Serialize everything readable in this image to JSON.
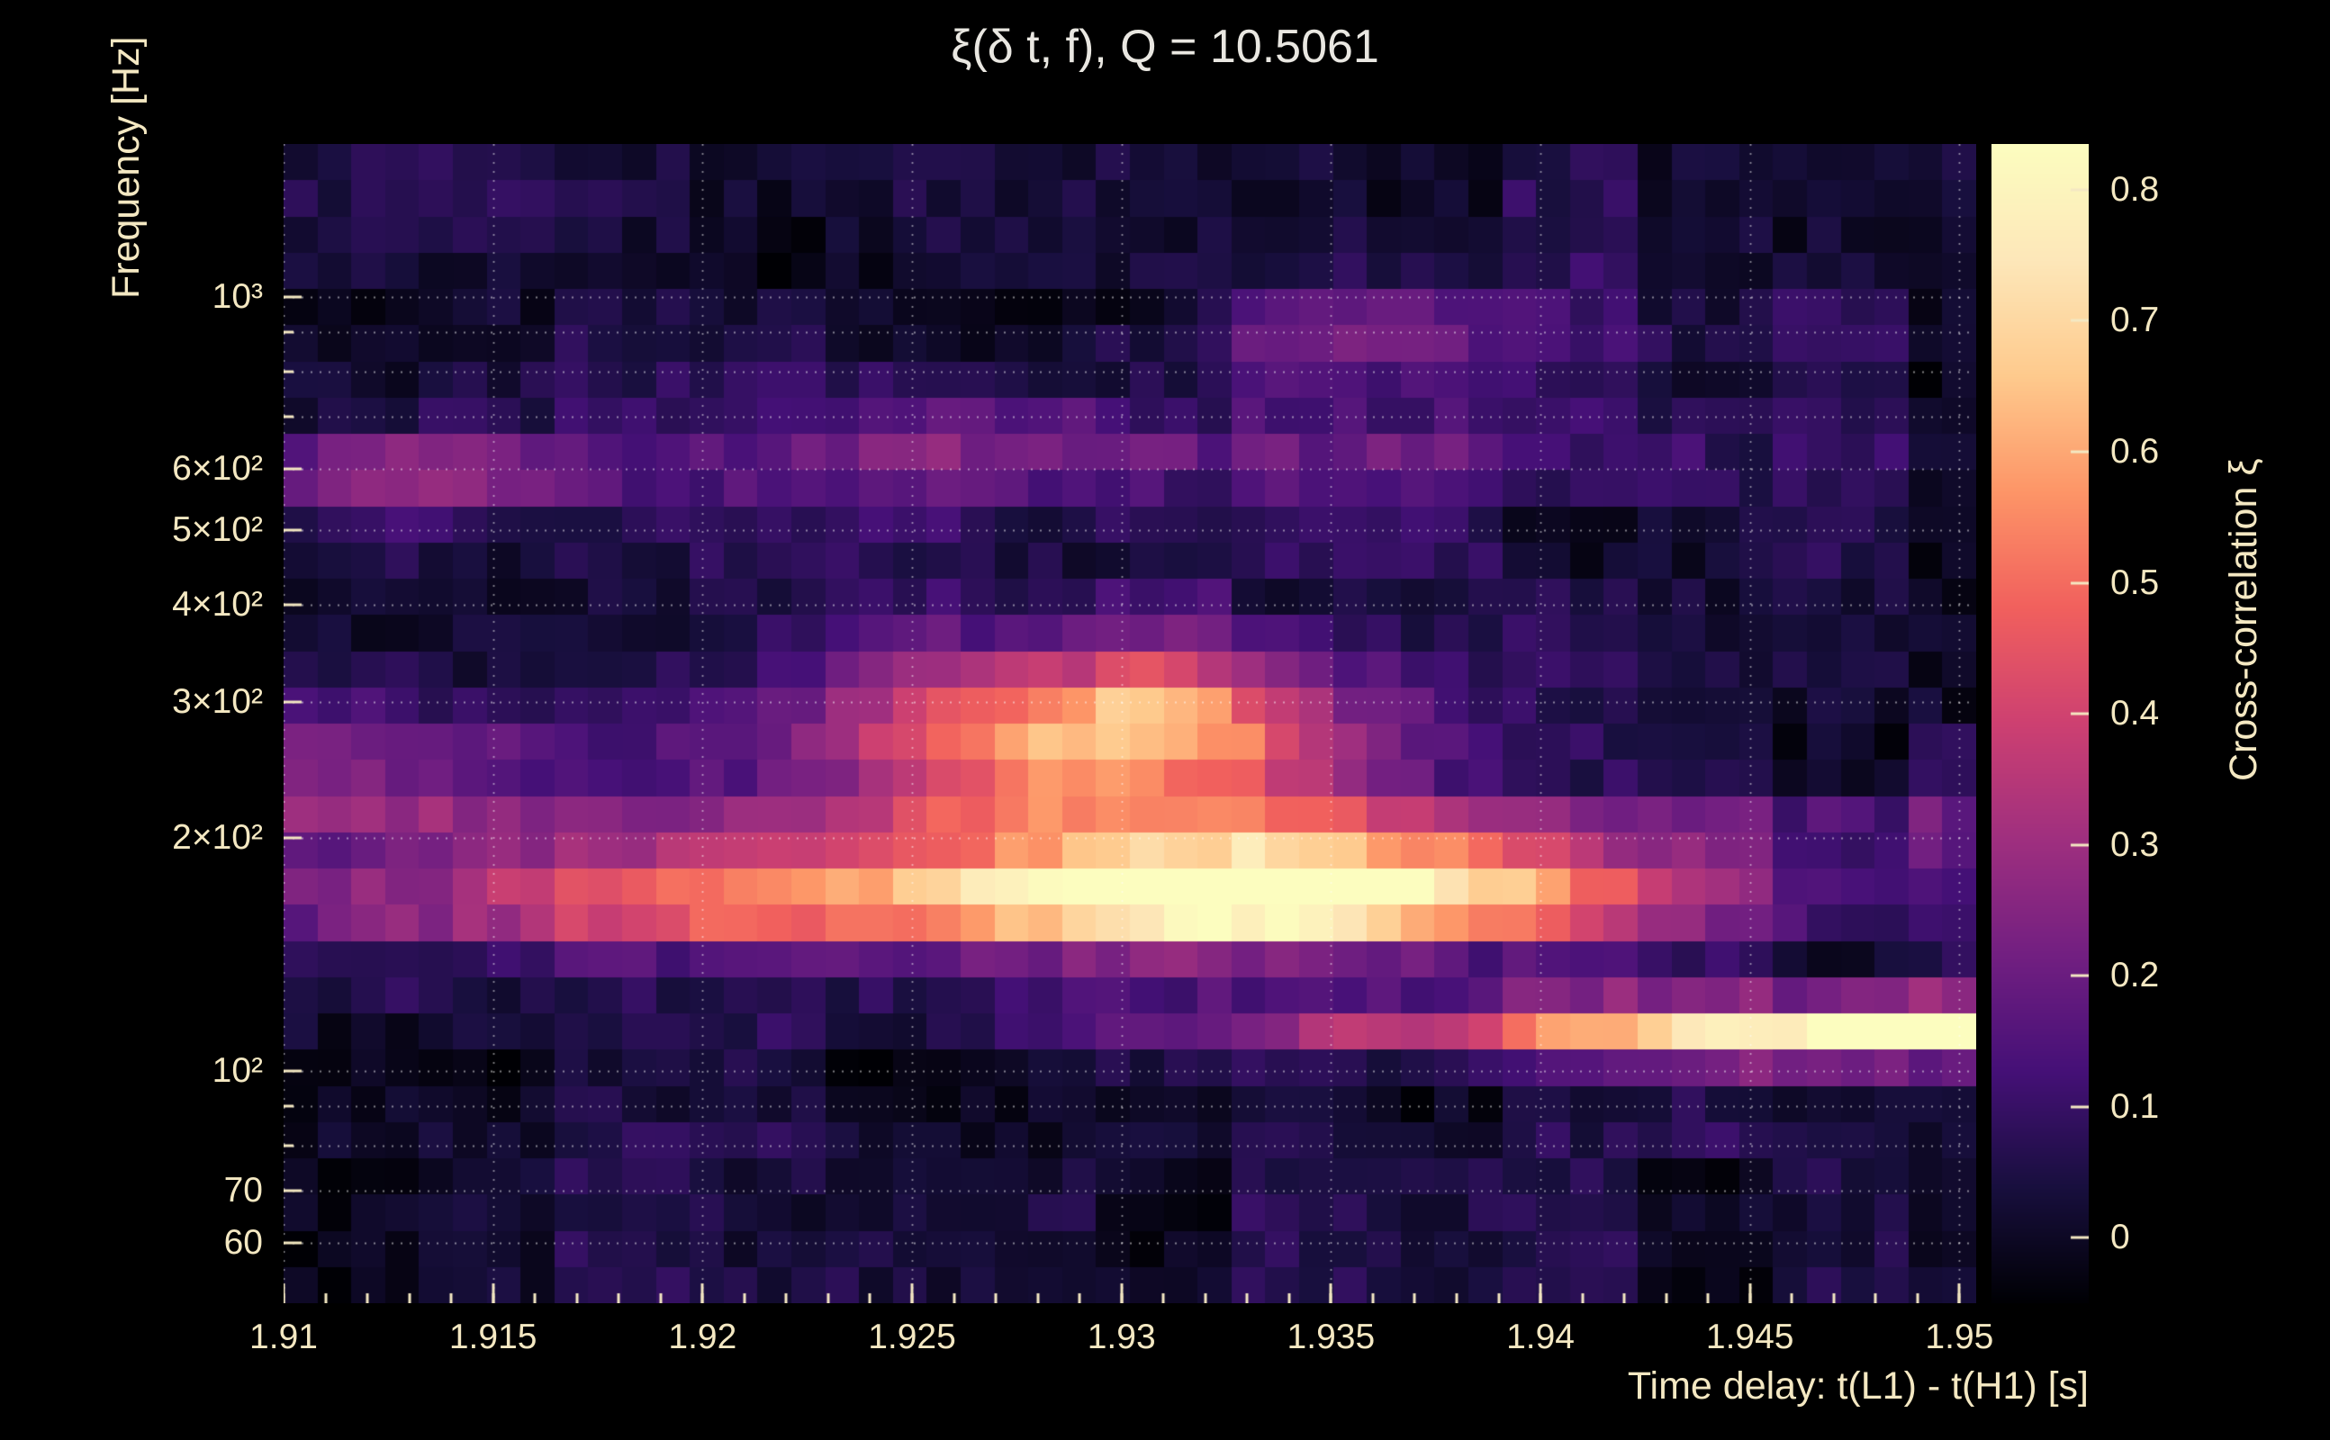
{
  "style": {
    "background": "#000000",
    "title_color": "#e9e7e1",
    "label_color": "#f4e8c2",
    "grid_color": "rgba(255,255,255,0.5)"
  },
  "chart_data": {
    "type": "heatmap",
    "title": "ξ(δ t, f), Q = 10.5061",
    "xlabel": "Time delay: t(L1) - t(H1) [s]",
    "ylabel": "Frequency [Hz]",
    "colorbar_label": "Cross-correlation ξ",
    "x_range": [
      1.91,
      1.9504
    ],
    "y_range_hz": [
      50.1,
      1577
    ],
    "y_scale": "log",
    "value_range": [
      -0.05,
      0.835
    ],
    "x_ticks": [
      {
        "value": 1.91,
        "label": "1.91"
      },
      {
        "value": 1.915,
        "label": "1.915"
      },
      {
        "value": 1.92,
        "label": "1.92"
      },
      {
        "value": 1.925,
        "label": "1.925"
      },
      {
        "value": 1.93,
        "label": "1.93"
      },
      {
        "value": 1.935,
        "label": "1.935"
      },
      {
        "value": 1.94,
        "label": "1.94"
      },
      {
        "value": 1.945,
        "label": "1.945"
      },
      {
        "value": 1.95,
        "label": "1.95"
      }
    ],
    "y_ticks": [
      {
        "value": 1000,
        "label": "10³"
      },
      {
        "value": 600,
        "label": "6×10²"
      },
      {
        "value": 500,
        "label": "5×10²"
      },
      {
        "value": 400,
        "label": "4×10²"
      },
      {
        "value": 300,
        "label": "3×10²"
      },
      {
        "value": 200,
        "label": "2×10²"
      },
      {
        "value": 100,
        "label": "10²"
      },
      {
        "value": 70,
        "label": "70"
      },
      {
        "value": 60,
        "label": "60"
      }
    ],
    "y_minor_ticks_hz": [
      80,
      90,
      700,
      800,
      900
    ],
    "grid_lines_hz": [
      60,
      70,
      80,
      90,
      100,
      200,
      300,
      400,
      500,
      600,
      700,
      800,
      900,
      1000
    ],
    "colorbar_ticks": [
      {
        "value": 0,
        "label": "0"
      },
      {
        "value": 0.1,
        "label": "0.1"
      },
      {
        "value": 0.2,
        "label": "0.2"
      },
      {
        "value": 0.3,
        "label": "0.3"
      },
      {
        "value": 0.4,
        "label": "0.4"
      },
      {
        "value": 0.5,
        "label": "0.5"
      },
      {
        "value": 0.6,
        "label": "0.6"
      },
      {
        "value": 0.7,
        "label": "0.7"
      },
      {
        "value": 0.8,
        "label": "0.8"
      }
    ],
    "grid": {
      "cols": 50,
      "rows": 32
    },
    "background_level": 0.03,
    "noise_amplitude": 0.08,
    "peak": {
      "time_delay": 1.9335,
      "frequency_hz": 170,
      "xi": 0.86
    },
    "blobs": [
      {
        "t": 1.9335,
        "f": 170,
        "st": 0.0055,
        "sf": 0.05,
        "a": 0.86
      },
      {
        "t": 1.9295,
        "f": 268,
        "st": 0.0045,
        "sf": 0.085,
        "a": 0.66
      },
      {
        "t": 1.92,
        "f": 165,
        "st": 0.005,
        "sf": 0.045,
        "a": 0.34
      },
      {
        "t": 1.945,
        "f": 113,
        "st": 0.009,
        "sf": 0.03,
        "a": 0.5
      },
      {
        "t": 1.9525,
        "f": 112,
        "st": 0.006,
        "sf": 0.028,
        "a": 0.46
      },
      {
        "t": 1.93,
        "f": 205,
        "st": 0.05,
        "sf": 0.024,
        "a": 0.2
      },
      {
        "t": 1.93,
        "f": 165,
        "st": 0.05,
        "sf": 0.03,
        "a": 0.14
      },
      {
        "t": 1.9135,
        "f": 590,
        "st": 0.0035,
        "sf": 0.035,
        "a": 0.28
      },
      {
        "t": 1.9265,
        "f": 640,
        "st": 0.004,
        "sf": 0.055,
        "a": 0.2
      },
      {
        "t": 1.938,
        "f": 620,
        "st": 0.006,
        "sf": 0.04,
        "a": 0.13
      },
      {
        "t": 1.936,
        "f": 900,
        "st": 0.004,
        "sf": 0.05,
        "a": 0.16
      },
      {
        "t": 1.911,
        "f": 250,
        "st": 0.004,
        "sf": 0.06,
        "a": 0.22
      },
      {
        "t": 1.93,
        "f": 97,
        "st": 0.05,
        "sf": 0.018,
        "a": -0.05
      },
      {
        "t": 1.922,
        "f": 1050,
        "st": 0.01,
        "sf": 0.04,
        "a": -0.04
      }
    ],
    "colormap": {
      "name": "magma",
      "stops": [
        {
          "pos": 0.0,
          "color": "#000004"
        },
        {
          "pos": 0.1,
          "color": "#180f3e"
        },
        {
          "pos": 0.2,
          "color": "#451077"
        },
        {
          "pos": 0.3,
          "color": "#721f81"
        },
        {
          "pos": 0.4,
          "color": "#9f2f7f"
        },
        {
          "pos": 0.5,
          "color": "#cd4071"
        },
        {
          "pos": 0.6,
          "color": "#f1605d"
        },
        {
          "pos": 0.7,
          "color": "#fd9567"
        },
        {
          "pos": 0.8,
          "color": "#feca8d"
        },
        {
          "pos": 0.9,
          "color": "#fde7b9"
        },
        {
          "pos": 1.0,
          "color": "#fcfdbf"
        }
      ]
    }
  }
}
